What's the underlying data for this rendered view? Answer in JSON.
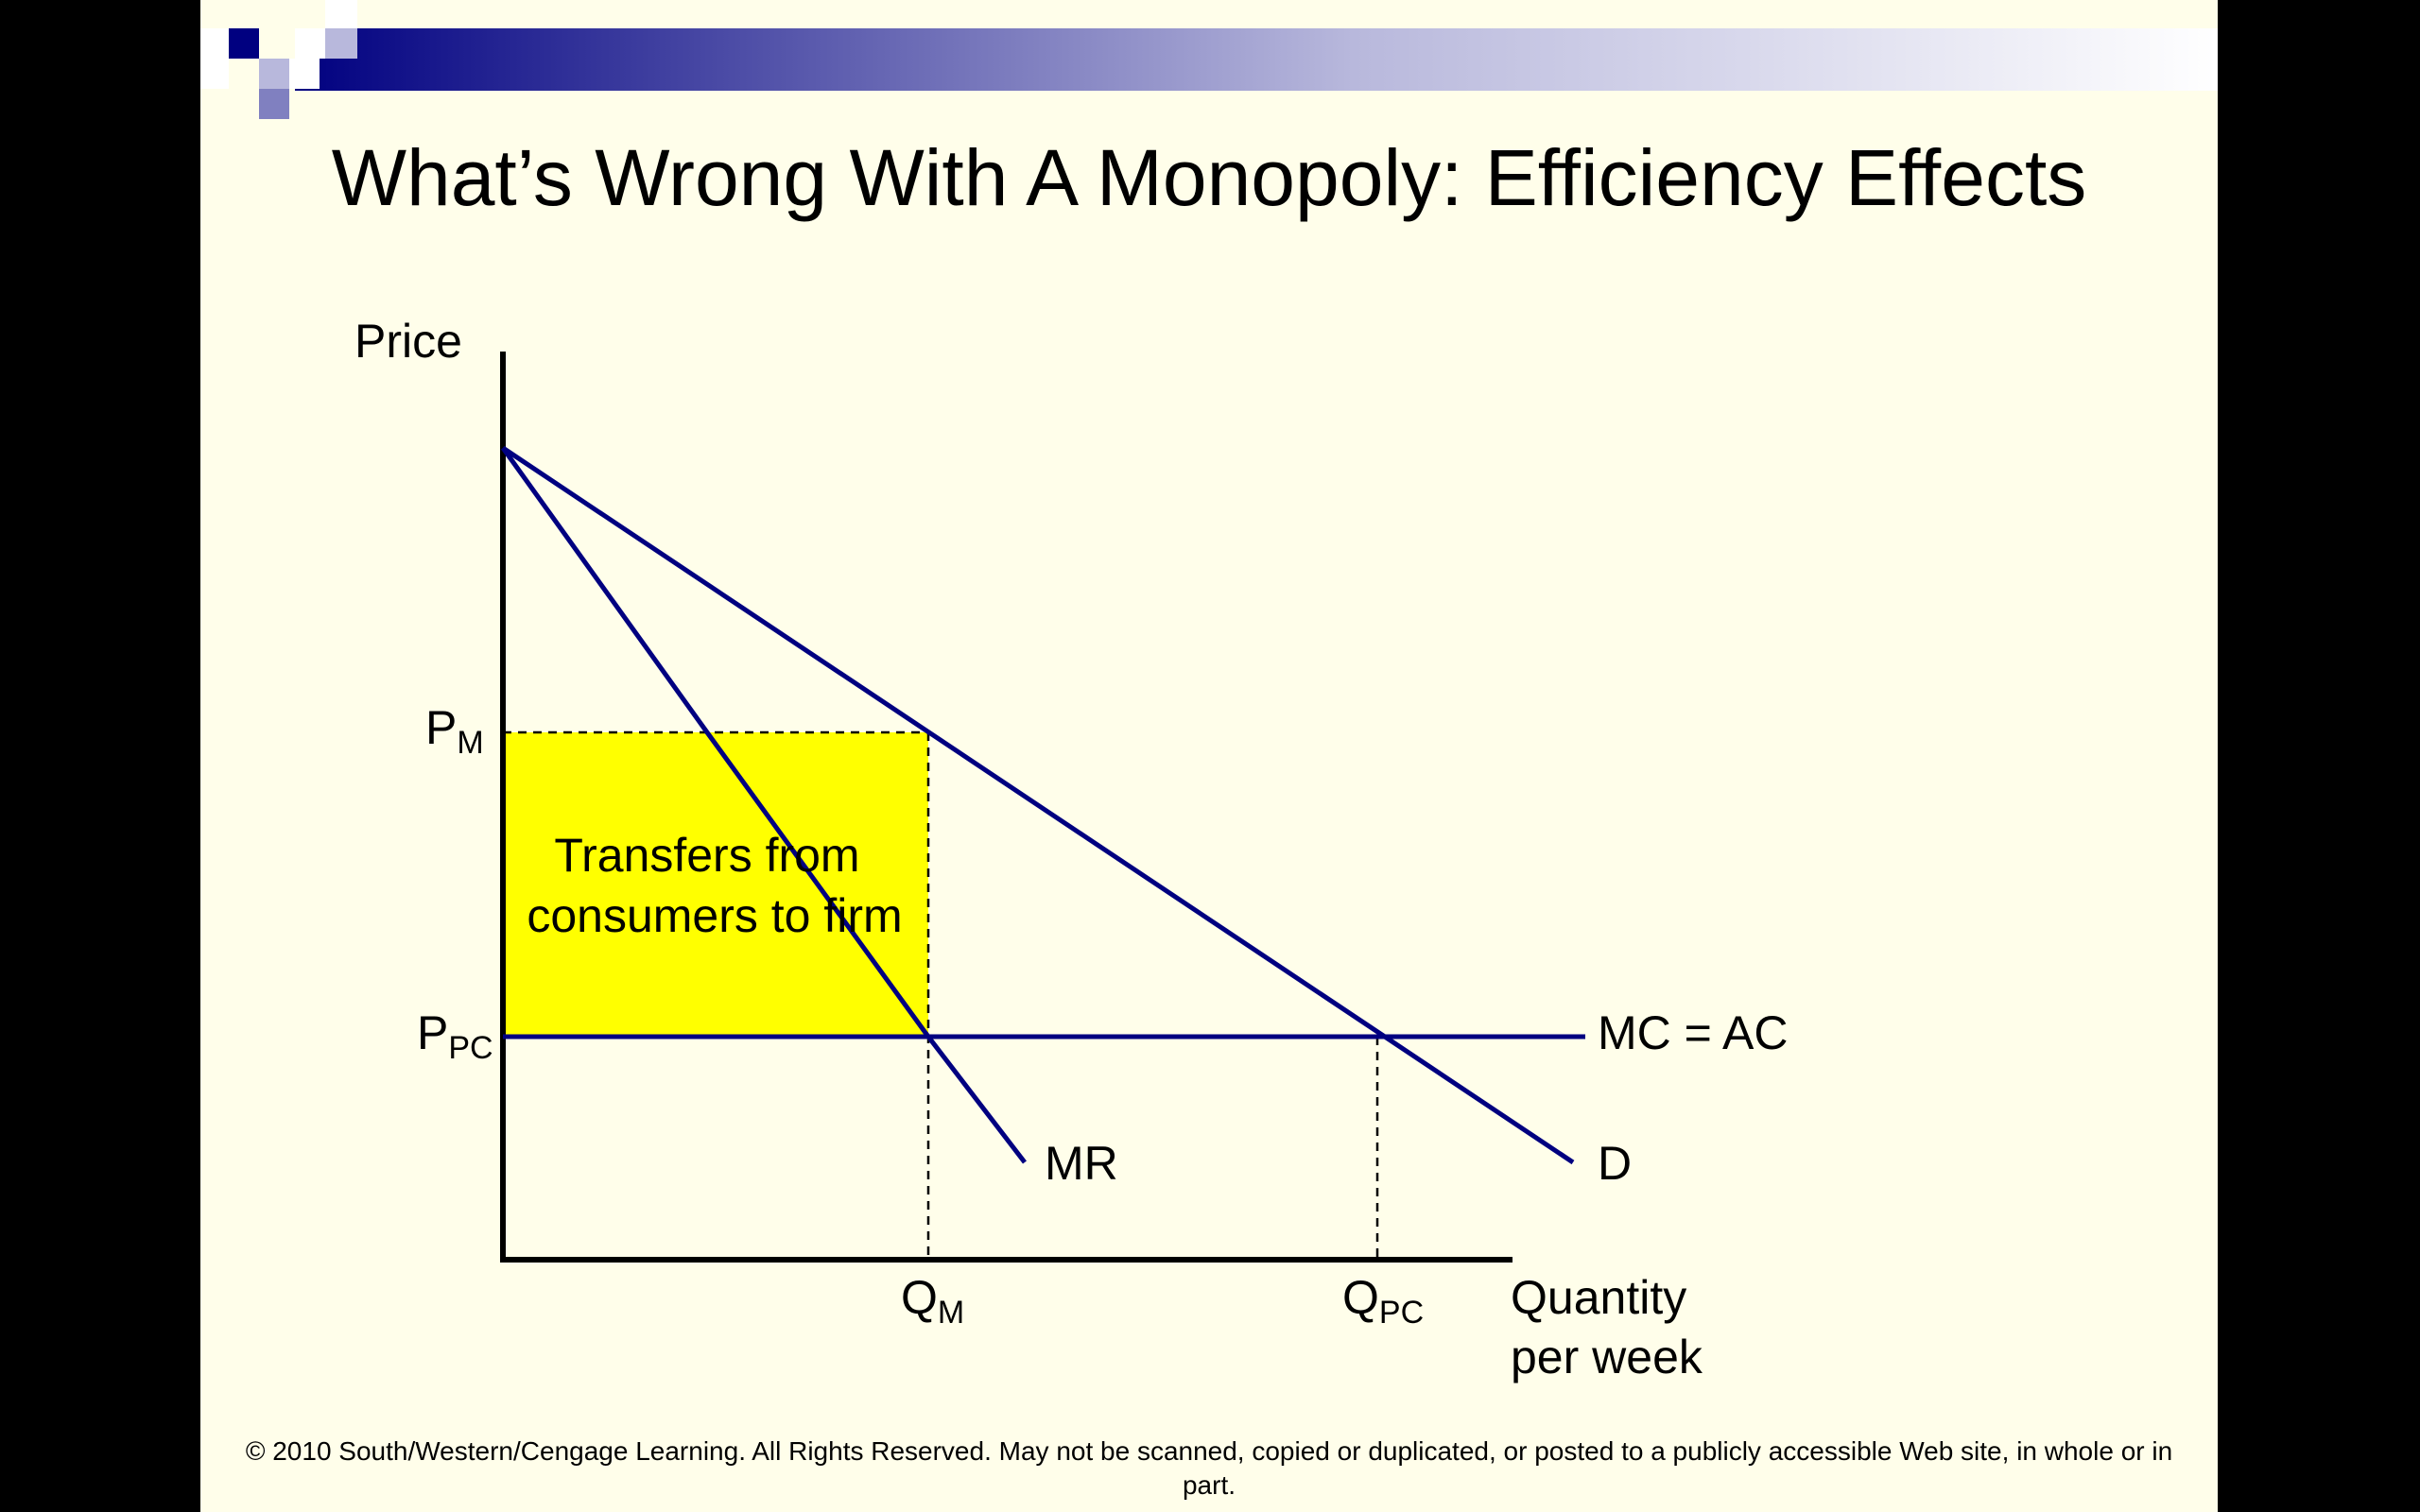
{
  "slide": {
    "title": "What’s Wrong With A Monopoly: Efficiency Effects",
    "footer": "© 2010 South/Western/Cengage Learning. All Rights Reserved. May not be scanned, copied or duplicated, or posted to a publicly accessible Web site, in whole or in part."
  },
  "diagram": {
    "y_axis_label": "Price",
    "x_axis_label_line1": "Quantity",
    "x_axis_label_line2": "per week",
    "pm_main": "P",
    "pm_sub": "M",
    "ppc_main": "P",
    "ppc_sub": "PC",
    "qm_main": "Q",
    "qm_sub": "M",
    "qpc_main": "Q",
    "qpc_sub": "PC",
    "transfer_line1": "Transfers from",
    "transfer_line2": "consumers to firm",
    "mc_ac_label": "MC = AC",
    "mr_label": "MR",
    "d_label": "D"
  },
  "colors": {
    "curve": "#000080",
    "transfer_area": "#ffff00",
    "background": "#fffeea",
    "banner_dark": "#000080"
  }
}
